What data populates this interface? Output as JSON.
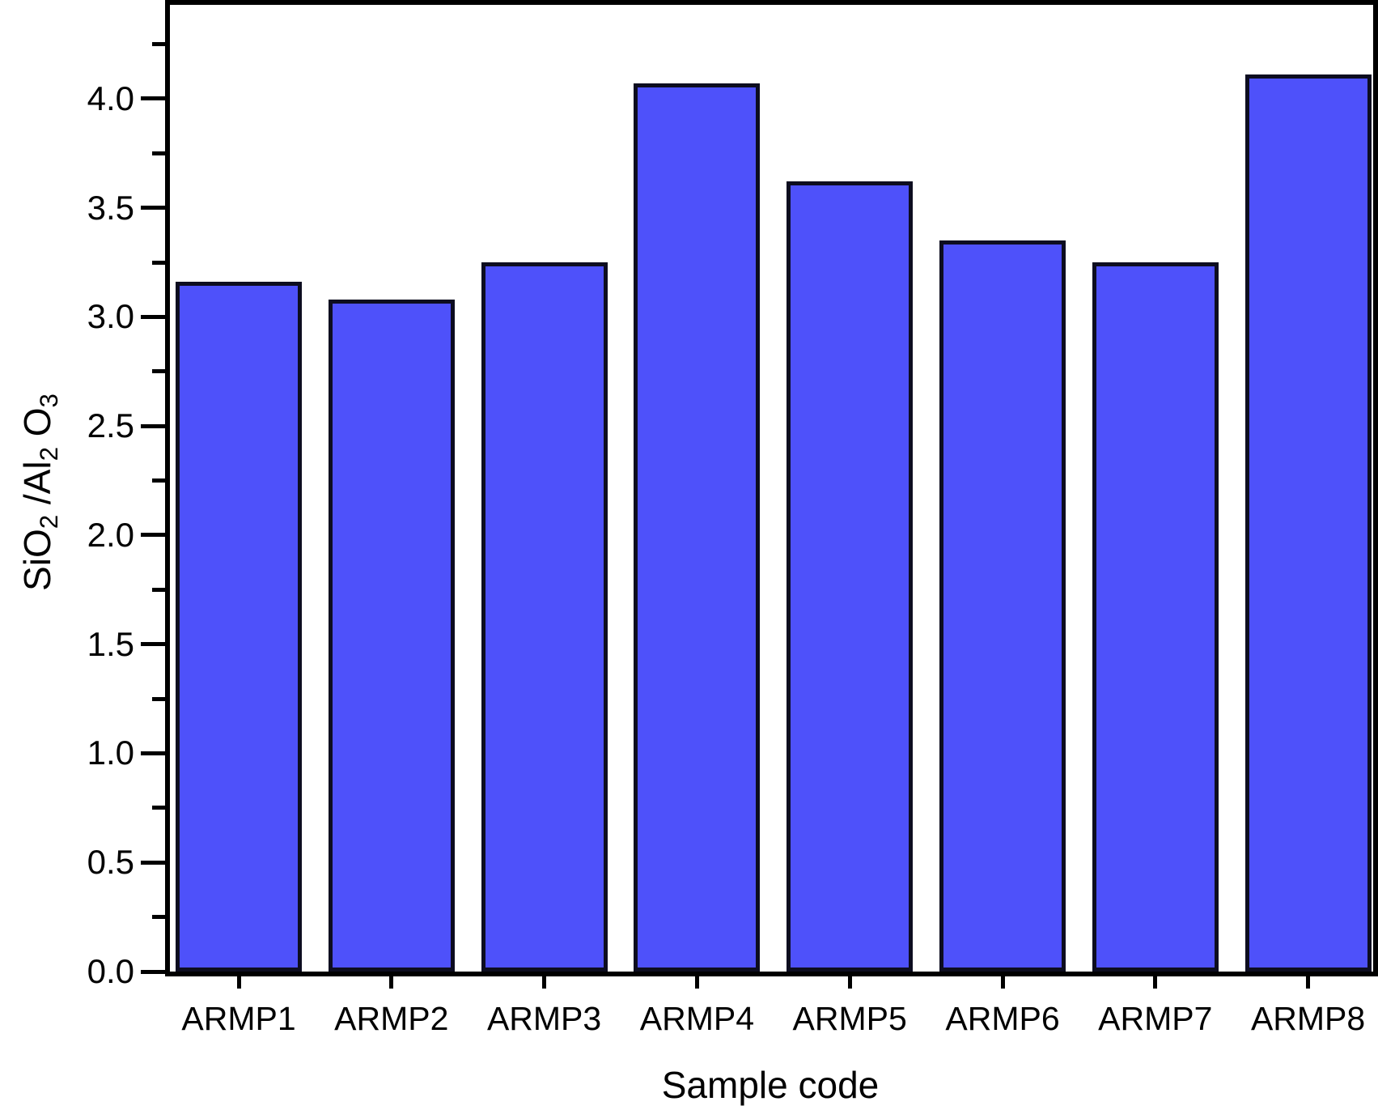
{
  "chart_data": {
    "type": "bar",
    "title": "",
    "xlabel": "Sample code",
    "ylabel": "SiO2/Al2O3",
    "ylabel_parts": [
      {
        "text": "SiO",
        "sub": false
      },
      {
        "text": "2",
        "sub": true
      },
      {
        "text": " /Al",
        "sub": false
      },
      {
        "text": "2",
        "sub": true
      },
      {
        "text": " O",
        "sub": false
      },
      {
        "text": "3",
        "sub": true
      }
    ],
    "categories": [
      "ARMP1",
      "ARMP2",
      "ARMP3",
      "ARMP4",
      "ARMP5",
      "ARMP6",
      "ARMP7",
      "ARMP8"
    ],
    "values": [
      3.16,
      3.08,
      3.25,
      4.07,
      3.62,
      3.35,
      3.25,
      4.11
    ],
    "ylim": [
      0,
      4.43
    ],
    "ytick_step": 0.5,
    "ytick_minor_step": 0.25,
    "ytick_labels": [
      "0.0",
      "0.5",
      "1.0",
      "1.5",
      "2.0",
      "2.5",
      "3.0",
      "3.5",
      "4.0"
    ],
    "grid": false,
    "legend": null,
    "bar_fill": "#4e51fa",
    "bar_border": "#0d0d20",
    "axis_color": "#000000"
  }
}
